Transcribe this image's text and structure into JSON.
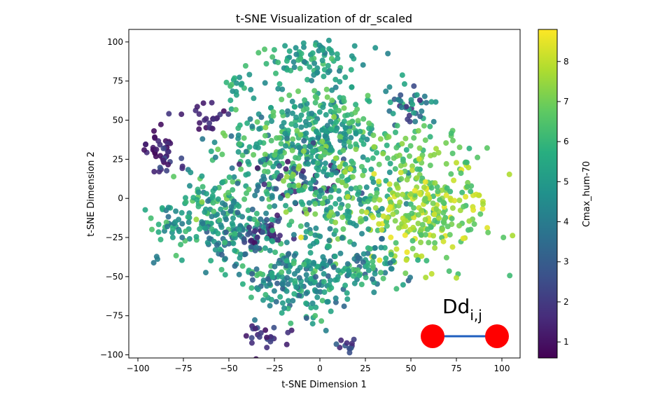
{
  "chart_data": {
    "type": "scatter",
    "title": "t-SNE Visualization of dr_scaled",
    "xlabel": "t-SNE Dimension 1",
    "ylabel": "t-SNE Dimension 2",
    "xlim": [
      -105,
      110
    ],
    "ylim": [
      -102,
      108
    ],
    "xticks": [
      -100,
      -75,
      -50,
      -25,
      0,
      25,
      50,
      75,
      100
    ],
    "yticks": [
      -100,
      -75,
      -50,
      -25,
      0,
      25,
      50,
      75,
      100
    ],
    "grid": false,
    "colorbar": {
      "label": "Cmax_hum-70",
      "range": [
        0.6,
        8.8
      ],
      "ticks": [
        1,
        2,
        3,
        4,
        5,
        6,
        7,
        8
      ],
      "colormap": "viridis"
    },
    "clusters": [
      {
        "center": [
          -88,
          33
        ],
        "spread": [
          4,
          6
        ],
        "count": 30,
        "value_range": [
          0.8,
          1.8
        ]
      },
      {
        "center": [
          -62,
          52
        ],
        "spread": [
          6,
          5
        ],
        "count": 24,
        "value_range": [
          0.8,
          2.0
        ]
      },
      {
        "center": [
          -46,
          72
        ],
        "spread": [
          4,
          5
        ],
        "count": 18,
        "value_range": [
          4.5,
          6.5
        ]
      },
      {
        "center": [
          -60,
          0
        ],
        "spread": [
          10,
          10
        ],
        "count": 70,
        "value_range": [
          4.0,
          7.5
        ]
      },
      {
        "center": [
          -45,
          -20
        ],
        "spread": [
          12,
          12
        ],
        "count": 130,
        "value_range": [
          3.0,
          6.5
        ]
      },
      {
        "center": [
          -30,
          -23
        ],
        "spread": [
          6,
          5
        ],
        "count": 40,
        "value_range": [
          1.0,
          3.0
        ]
      },
      {
        "center": [
          -82,
          -20
        ],
        "spread": [
          6,
          12
        ],
        "count": 40,
        "value_range": [
          3.5,
          6.5
        ]
      },
      {
        "center": [
          -5,
          90
        ],
        "spread": [
          14,
          6
        ],
        "count": 80,
        "value_range": [
          4.0,
          6.5
        ]
      },
      {
        "center": [
          5,
          48
        ],
        "spread": [
          14,
          12
        ],
        "count": 170,
        "value_range": [
          4.0,
          7.0
        ]
      },
      {
        "center": [
          -28,
          28
        ],
        "spread": [
          16,
          16
        ],
        "count": 150,
        "value_range": [
          3.5,
          7.0
        ]
      },
      {
        "center": [
          -12,
          10
        ],
        "spread": [
          12,
          10
        ],
        "count": 50,
        "value_range": [
          1.0,
          3.5
        ]
      },
      {
        "center": [
          10,
          8
        ],
        "spread": [
          18,
          22
        ],
        "count": 260,
        "value_range": [
          4.0,
          7.5
        ]
      },
      {
        "center": [
          48,
          60
        ],
        "spread": [
          8,
          6
        ],
        "count": 40,
        "value_range": [
          1.5,
          5.5
        ]
      },
      {
        "center": [
          52,
          30
        ],
        "spread": [
          14,
          10
        ],
        "count": 60,
        "value_range": [
          5.5,
          7.5
        ]
      },
      {
        "center": [
          60,
          -10
        ],
        "spread": [
          17,
          17
        ],
        "count": 260,
        "value_range": [
          6.0,
          8.6
        ]
      },
      {
        "center": [
          -25,
          -50
        ],
        "spread": [
          12,
          12
        ],
        "count": 90,
        "value_range": [
          3.0,
          6.5
        ]
      },
      {
        "center": [
          -2,
          -52
        ],
        "spread": [
          10,
          12
        ],
        "count": 110,
        "value_range": [
          3.0,
          6.5
        ]
      },
      {
        "center": [
          28,
          -42
        ],
        "spread": [
          10,
          8
        ],
        "count": 70,
        "value_range": [
          3.0,
          6.5
        ]
      },
      {
        "center": [
          -30,
          -88
        ],
        "spread": [
          7,
          5
        ],
        "count": 24,
        "value_range": [
          0.8,
          3.0
        ]
      },
      {
        "center": [
          15,
          -92
        ],
        "spread": [
          4,
          4
        ],
        "count": 12,
        "value_range": [
          1.5,
          3.5
        ]
      },
      {
        "center": [
          -85,
          23
        ],
        "spread": [
          4,
          6
        ],
        "count": 14,
        "value_range": [
          1.0,
          3.0
        ]
      }
    ]
  },
  "annotation": {
    "label_base": "Dd",
    "label_sub": "i,j",
    "node_color": "#ff0000",
    "bond_color": "#1f5fbf"
  }
}
